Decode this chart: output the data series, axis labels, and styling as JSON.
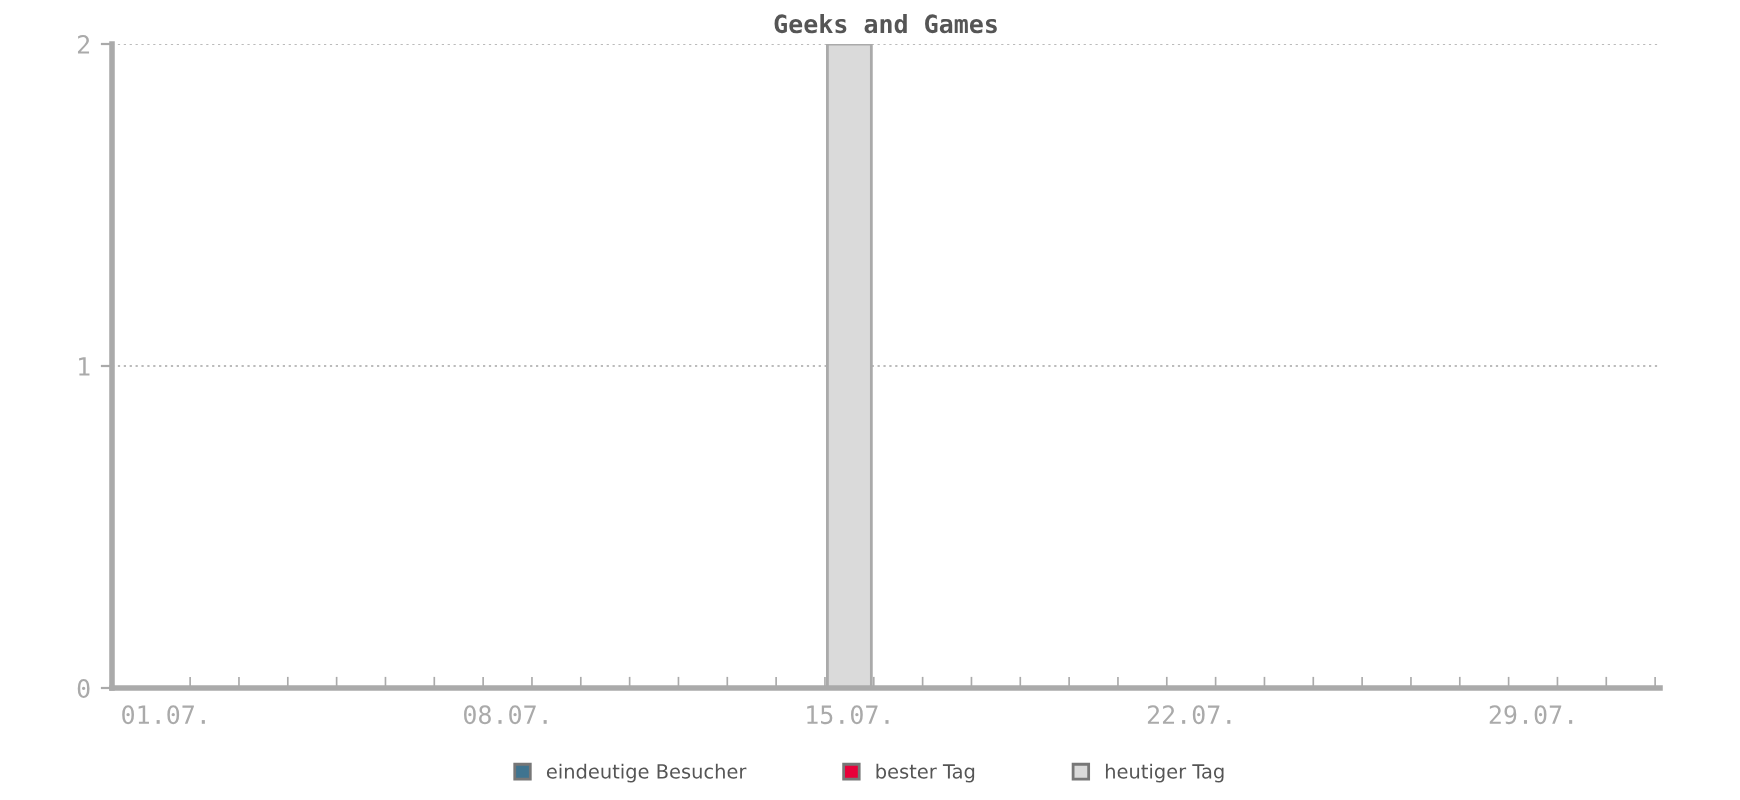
{
  "chart_data": {
    "type": "bar",
    "title": "Geeks and Games",
    "categories": [
      "01.07.",
      null,
      null,
      null,
      null,
      null,
      null,
      "08.07.",
      null,
      null,
      null,
      null,
      null,
      null,
      "15.07.",
      null,
      null,
      null,
      null,
      null,
      null,
      "22.07.",
      null,
      null,
      null,
      null,
      null,
      null,
      "29.07.",
      null,
      null
    ],
    "series": [
      {
        "name": "eindeutige Besucher",
        "color": "#3f7490",
        "values": [
          null,
          null,
          null,
          null,
          null,
          null,
          null,
          null,
          null,
          null,
          null,
          null,
          null,
          null,
          null,
          null,
          null,
          null,
          null,
          null,
          null,
          null,
          null,
          null,
          null,
          null,
          null,
          null,
          null,
          null,
          null
        ]
      },
      {
        "name": "bester Tag",
        "color": "#e8003a",
        "values": [
          null,
          null,
          null,
          null,
          null,
          null,
          null,
          null,
          null,
          null,
          null,
          null,
          null,
          null,
          null,
          null,
          null,
          null,
          null,
          null,
          null,
          null,
          null,
          null,
          null,
          null,
          null,
          null,
          null,
          null,
          null
        ]
      },
      {
        "name": "heutiger Tag",
        "color": "#dadada",
        "values": [
          null,
          null,
          null,
          null,
          null,
          null,
          null,
          null,
          null,
          null,
          null,
          null,
          null,
          null,
          2,
          null,
          null,
          null,
          null,
          null,
          null,
          null,
          null,
          null,
          null,
          null,
          null,
          null,
          null,
          null,
          null
        ]
      }
    ],
    "ylim": [
      0,
      2
    ],
    "yticks": [
      0,
      1,
      2
    ],
    "grid": "y",
    "legend": "bottom"
  }
}
